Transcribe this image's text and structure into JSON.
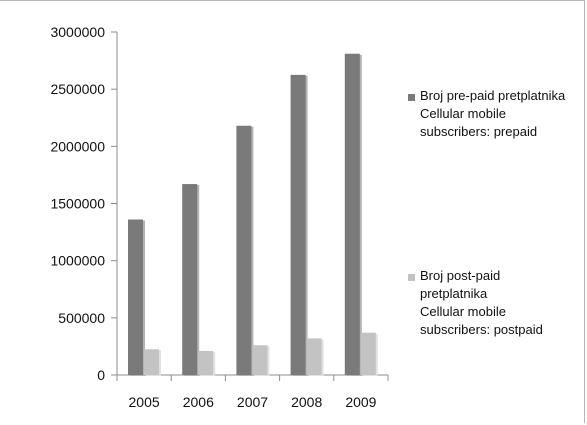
{
  "chart_data": {
    "type": "bar",
    "categories": [
      "2005",
      "2006",
      "2007",
      "2008",
      "2009"
    ],
    "series": [
      {
        "name": "Broj pre-paid pretplatnika Cellular mobile subscribers: prepaid",
        "legend_lines": [
          "Broj pre-paid pretplatnika",
          "Cellular mobile",
          "subscribers: prepaid"
        ],
        "color": "#7a7a7a",
        "values": [
          1360000,
          1670000,
          2180000,
          2625000,
          2810000
        ]
      },
      {
        "name": "Broj post-paid pretplatnika Cellular mobile subscribers: postpaid",
        "legend_lines": [
          "Broj post-paid",
          "pretplatnika",
          "Cellular mobile",
          "subscribers: postpaid"
        ],
        "color": "#c3c3c3",
        "values": [
          225000,
          210000,
          260000,
          320000,
          370000
        ]
      }
    ],
    "y_ticks": [
      "0",
      "500000",
      "1000000",
      "1500000",
      "2000000",
      "2500000",
      "3000000"
    ],
    "ylim": [
      0,
      3000000
    ],
    "grid": false,
    "legend_position": "right"
  }
}
